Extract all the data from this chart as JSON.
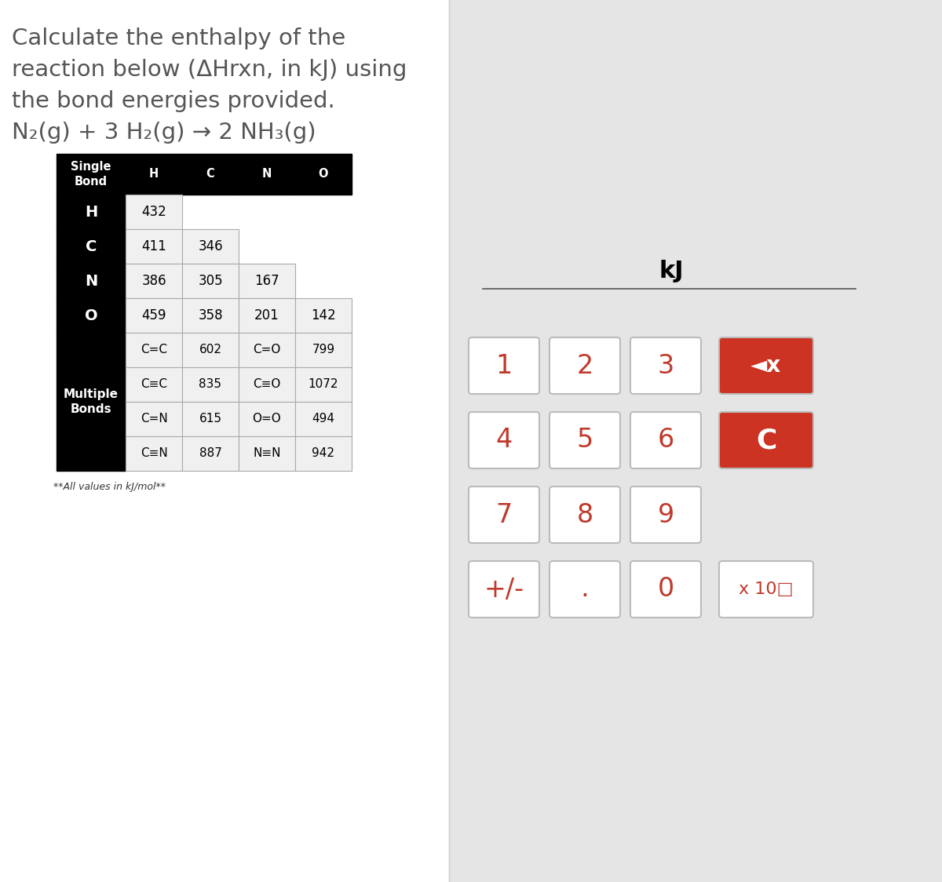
{
  "title_lines": [
    "Calculate the enthalpy of the",
    "reaction below (ΔHrxn, in kJ) using",
    "the bond energies provided.",
    "N₂(g) + 3 H₂(g) → 2 NH₃(g)"
  ],
  "title_color": "#555555",
  "bg_left": "#ffffff",
  "calc_bg": "#e5e5e5",
  "table_header_bg": "#000000",
  "table_header_text": "#ffffff",
  "table_data_bg": "#f0f0f0",
  "table_border_color": "#aaaaaa",
  "single_bond_header": [
    "Single\nBond",
    "H",
    "C",
    "N",
    "O"
  ],
  "single_bond_rows": [
    [
      "H",
      "432",
      "",
      "",
      ""
    ],
    [
      "C",
      "411",
      "346",
      "",
      ""
    ],
    [
      "N",
      "386",
      "305",
      "167",
      ""
    ],
    [
      "O",
      "459",
      "358",
      "201",
      "142"
    ]
  ],
  "multiple_bonds_label": "Multiple\nBonds",
  "multiple_bond_rows": [
    [
      "C=C",
      "602",
      "C=O",
      "799"
    ],
    [
      "C≡C",
      "835",
      "C≡O",
      "1072"
    ],
    [
      "C=N",
      "615",
      "O=O",
      "494"
    ],
    [
      "C≡N",
      "887",
      "N≡N",
      "942"
    ]
  ],
  "footnote": "**All values in kJ/mol**",
  "kj_label": "kJ",
  "button_bg": "#ffffff",
  "button_red_bg": "#cc3322",
  "button_text_color": "#c0392b",
  "button_red_text": "#ffffff",
  "button_border": "#bbbbbb",
  "buttons_rows": [
    [
      "1",
      "2",
      "3"
    ],
    [
      "4",
      "5",
      "6"
    ],
    [
      "7",
      "8",
      "9"
    ],
    [
      "+/-",
      ".",
      "0"
    ]
  ],
  "backspace_label": "◄x",
  "clear_label": "C",
  "x10_label": "x 10□"
}
